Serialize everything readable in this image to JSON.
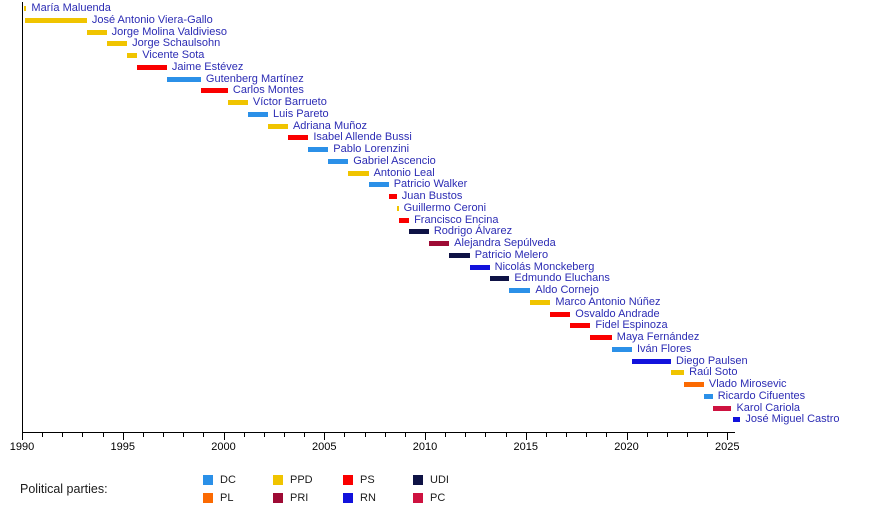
{
  "chart_data": {
    "type": "timeline",
    "title": "",
    "x_axis": {
      "min": 1990,
      "max": 2025.4,
      "minor_tick_step": 1,
      "major_tick_step": 5,
      "major_ticks": [
        1990,
        1995,
        2000,
        2005,
        2010,
        2015,
        2020,
        2025
      ],
      "tick_labels": [
        "1990",
        "1995",
        "2000",
        "2005",
        "2010",
        "2015",
        "2020",
        "2025"
      ],
      "grid": "off"
    },
    "parties": {
      "DC": "#2B90E8",
      "PPD": "#F0C400",
      "PS": "#FA0000",
      "UDI": "#0E1245",
      "PL": "#FB6A02",
      "PRI": "#9E0B35",
      "RN": "#1212DC",
      "PC": "#CE1240"
    },
    "people": [
      {
        "name": "María Maluenda",
        "party": "PPD",
        "start": 1990.1,
        "end": 1990.22
      },
      {
        "name": "José Antonio Viera-Gallo",
        "party": "PPD",
        "start": 1990.15,
        "end": 1993.22
      },
      {
        "name": "Jorge Molina Valdivieso",
        "party": "PPD",
        "start": 1993.22,
        "end": 1994.2
      },
      {
        "name": "Jorge Schaulsohn",
        "party": "PPD",
        "start": 1994.2,
        "end": 1995.22
      },
      {
        "name": "Vicente Sota",
        "party": "PPD",
        "start": 1995.22,
        "end": 1995.72
      },
      {
        "name": "Jaime Estévez",
        "party": "PS",
        "start": 1995.72,
        "end": 1997.19
      },
      {
        "name": "Gutenberg Martínez",
        "party": "DC",
        "start": 1997.19,
        "end": 1998.88
      },
      {
        "name": "Carlos Montes",
        "party": "PS",
        "start": 1998.88,
        "end": 2000.22
      },
      {
        "name": "Víctor Barrueto",
        "party": "PPD",
        "start": 2000.22,
        "end": 2001.21
      },
      {
        "name": "Luis Pareto",
        "party": "DC",
        "start": 2001.21,
        "end": 2002.21
      },
      {
        "name": "Adriana Muñoz",
        "party": "PPD",
        "start": 2002.21,
        "end": 2003.2
      },
      {
        "name": "Isabel Allende Bussi",
        "party": "PS",
        "start": 2003.2,
        "end": 2004.21
      },
      {
        "name": "Pablo Lorenzini",
        "party": "DC",
        "start": 2004.21,
        "end": 2005.2
      },
      {
        "name": "Gabriel Ascencio",
        "party": "DC",
        "start": 2005.2,
        "end": 2006.19
      },
      {
        "name": "Antonio Leal",
        "party": "PPD",
        "start": 2006.19,
        "end": 2007.2
      },
      {
        "name": "Patricio Walker",
        "party": "DC",
        "start": 2007.2,
        "end": 2008.2
      },
      {
        "name": "Juan Bustos",
        "party": "PS",
        "start": 2008.2,
        "end": 2008.6
      },
      {
        "name": "Guillermo Ceroni",
        "party": "PPD",
        "start": 2008.6,
        "end": 2008.69
      },
      {
        "name": "Francisco Encina",
        "party": "PS",
        "start": 2008.69,
        "end": 2009.21
      },
      {
        "name": "Rodrigo Álvarez",
        "party": "UDI",
        "start": 2009.21,
        "end": 2010.19
      },
      {
        "name": "Alejandra Sepúlveda",
        "party": "PRI",
        "start": 2010.19,
        "end": 2011.2
      },
      {
        "name": "Patricio Melero",
        "party": "UDI",
        "start": 2011.2,
        "end": 2012.22
      },
      {
        "name": "Nicolás Monckeberg",
        "party": "RN",
        "start": 2012.22,
        "end": 2013.21
      },
      {
        "name": "Edmundo Eluchans",
        "party": "UDI",
        "start": 2013.21,
        "end": 2014.19
      },
      {
        "name": "Aldo Cornejo",
        "party": "DC",
        "start": 2014.19,
        "end": 2015.23
      },
      {
        "name": "Marco Antonio Núñez",
        "party": "PPD",
        "start": 2015.23,
        "end": 2016.22
      },
      {
        "name": "Osvaldo Andrade",
        "party": "PS",
        "start": 2016.22,
        "end": 2017.21
      },
      {
        "name": "Fidel Espinoza",
        "party": "PS",
        "start": 2017.21,
        "end": 2018.21
      },
      {
        "name": "Maya Fernández",
        "party": "PS",
        "start": 2018.21,
        "end": 2019.27
      },
      {
        "name": "Iván Flores",
        "party": "DC",
        "start": 2019.27,
        "end": 2020.27
      },
      {
        "name": "Diego Paulsen",
        "party": "RN",
        "start": 2020.27,
        "end": 2022.21
      },
      {
        "name": "Raúl Soto",
        "party": "PPD",
        "start": 2022.21,
        "end": 2022.86
      },
      {
        "name": "Vlado Mirosevic",
        "party": "PL",
        "start": 2022.86,
        "end": 2023.84
      },
      {
        "name": "Ricardo Cifuentes",
        "party": "DC",
        "start": 2023.84,
        "end": 2024.28
      },
      {
        "name": "Karol Cariola",
        "party": "PC",
        "start": 2024.28,
        "end": 2025.21
      },
      {
        "name": "José Miguel Castro",
        "party": "RN",
        "start": 2025.28,
        "end": 2025.65
      }
    ]
  },
  "legend": {
    "title": "Political parties:",
    "columns": [
      [
        "DC",
        "PL"
      ],
      [
        "PPD",
        "PRI"
      ],
      [
        "PS",
        "RN"
      ],
      [
        "UDI",
        "PC"
      ]
    ]
  },
  "colors": {
    "name_label": "#2C2CB4",
    "axis": "#000000",
    "tick_label": "#000000",
    "background": "#FFFFFF"
  }
}
